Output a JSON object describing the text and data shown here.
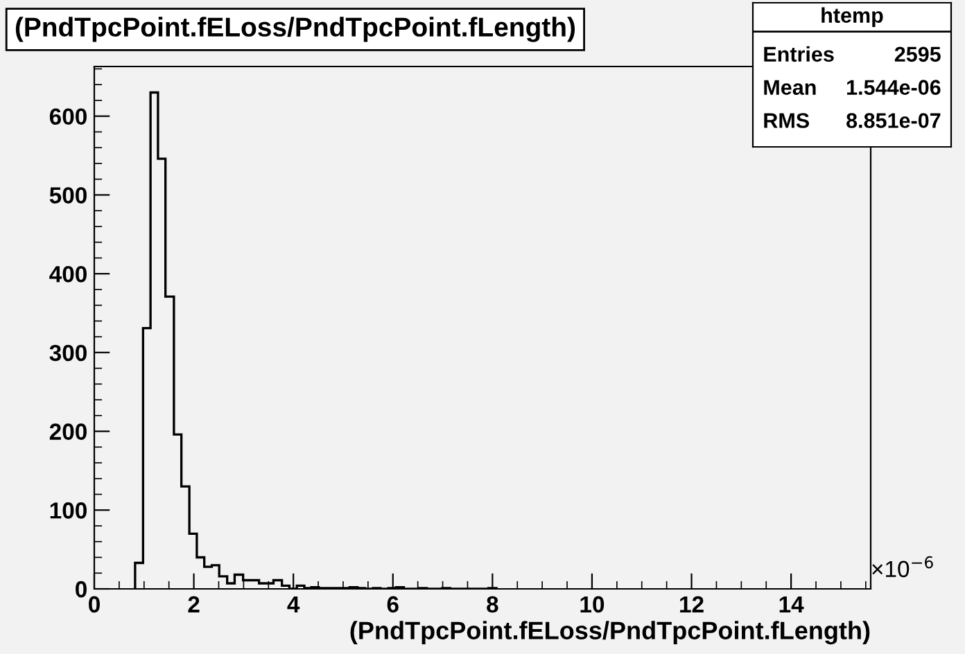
{
  "chart_data": {
    "type": "histogram",
    "title": "(PndTpcPoint.fELoss/PndTpcPoint.fLength)",
    "xlabel": "(PndTpcPoint.fELoss/PndTpcPoint.fLength)",
    "bins": [
      0.82,
      0.98,
      1.13,
      1.28,
      1.43,
      1.6,
      1.75,
      1.91,
      2.06,
      2.21,
      2.36,
      2.51,
      2.67,
      2.82,
      2.99,
      3.15,
      3.31,
      3.45,
      3.6,
      3.77,
      3.92,
      4.07,
      4.22,
      4.36,
      4.51,
      4.67,
      4.82,
      4.98,
      5.13,
      5.29,
      5.44,
      5.6,
      5.75,
      5.91,
      6.06,
      6.22,
      6.37,
      6.53,
      6.68,
      6.84,
      6.99,
      7.15,
      7.3,
      7.46,
      7.61,
      7.77,
      7.92,
      8.08
    ],
    "values": [
      33,
      331,
      630,
      546,
      371,
      196,
      130,
      70,
      40,
      28,
      30,
      16,
      7,
      18,
      11,
      11,
      7,
      7,
      11,
      4,
      0,
      4,
      1,
      2,
      1,
      1,
      1,
      1,
      2,
      1,
      0,
      1,
      0,
      1,
      2,
      0,
      0,
      1,
      0,
      0,
      1,
      0,
      0,
      0,
      0,
      0,
      1
    ],
    "color": "#000000",
    "xlim": [
      0,
      15.6
    ],
    "ylim": [
      0,
      663
    ],
    "xticks": [
      0,
      2,
      4,
      6,
      8,
      10,
      12,
      14
    ],
    "yticks": [
      0,
      100,
      200,
      300,
      400,
      500,
      600
    ],
    "grid": false,
    "annotations": [
      "×10$^{−6}$",
      "htemp",
      "Entries 2595",
      "Mean 1.544e-06",
      "RMS 8.851e-07"
    ]
  }
}
